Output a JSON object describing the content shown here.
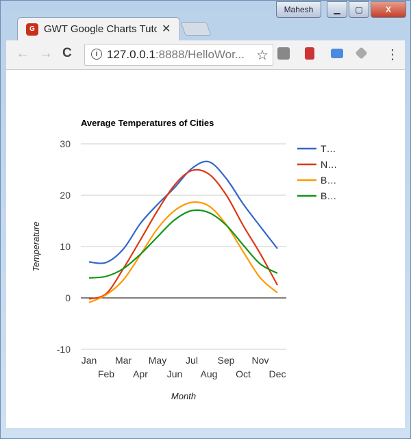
{
  "window": {
    "user": "Mahesh",
    "min_icon": "minimize-icon",
    "max_icon": "maximize-icon",
    "close_icon": "close-icon",
    "close_label": "X"
  },
  "tab": {
    "title": "GWT Google Charts Tuto",
    "favicon_text": "G"
  },
  "toolbar": {
    "url_host": "127.0.0.1",
    "url_rest": ":8888/HelloWor...",
    "info": "i",
    "back": "←",
    "forward": "→",
    "reload": "C",
    "star": "☆",
    "menu": "⋮"
  },
  "chart_data": {
    "type": "line",
    "title": "Average Temperatures of Cities",
    "xlabel": "Month",
    "ylabel": "Temperature",
    "categories": [
      "Jan",
      "Feb",
      "Mar",
      "Apr",
      "May",
      "Jun",
      "Jul",
      "Aug",
      "Sep",
      "Oct",
      "Nov",
      "Dec"
    ],
    "ylim": [
      -10,
      30
    ],
    "yticks": [
      "30",
      "20",
      "10",
      "0",
      "-10"
    ],
    "grid": true,
    "legend": "right",
    "curve": "smooth",
    "series": [
      {
        "name": "T…",
        "color": "#3366cc",
        "values": [
          7.0,
          6.9,
          9.5,
          14.5,
          18.2,
          21.5,
          25.2,
          26.5,
          23.3,
          18.3,
          13.9,
          9.6
        ]
      },
      {
        "name": "N…",
        "color": "#dc3912",
        "values": [
          -0.2,
          0.8,
          5.7,
          11.3,
          17.0,
          22.0,
          24.8,
          24.1,
          20.1,
          14.1,
          8.6,
          2.5
        ]
      },
      {
        "name": "B…",
        "color": "#ff9900",
        "values": [
          -0.9,
          0.6,
          3.5,
          8.4,
          13.5,
          17.0,
          18.6,
          17.9,
          14.3,
          9.0,
          3.9,
          1.0
        ]
      },
      {
        "name": "B…",
        "color": "#109618",
        "values": [
          3.9,
          4.2,
          5.7,
          8.5,
          11.9,
          15.2,
          17.0,
          16.6,
          14.2,
          10.3,
          6.6,
          4.8
        ]
      }
    ]
  }
}
